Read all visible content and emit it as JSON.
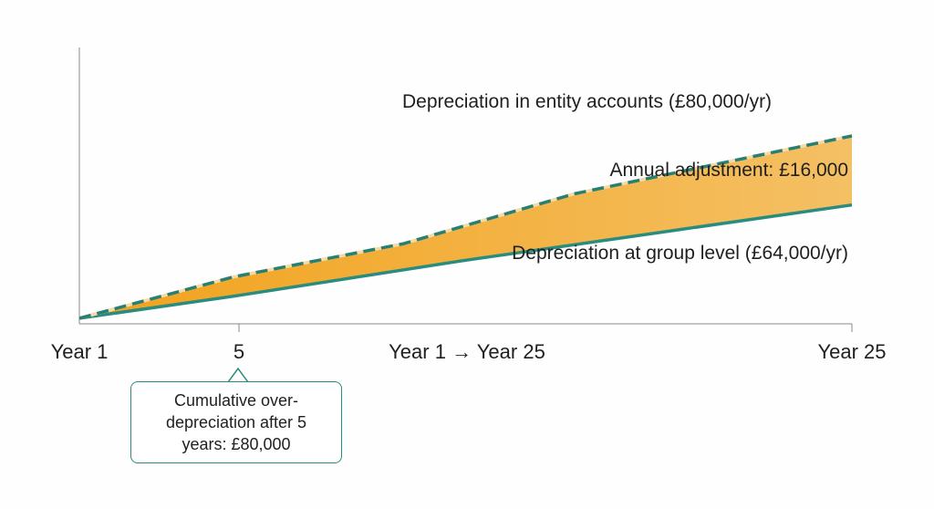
{
  "colors": {
    "entity_line": "#2a7f73",
    "group_line": "#2a8c7e",
    "fill_start": "#f2a21b",
    "fill_end": "#f4c064",
    "axis": "#8a8a8a",
    "text": "#1f1f1f"
  },
  "chart_data": {
    "type": "area",
    "x_ticks": [
      "Year 1",
      "5",
      "Year 1 → Year 25",
      "Year 25"
    ],
    "series": [
      {
        "name": "Depreciation in entity accounts (£80,000/yr)",
        "style": "dashed",
        "points": [
          [
            0,
            0.02
          ],
          [
            0.2,
            0.17
          ],
          [
            0.42,
            0.29
          ],
          [
            0.64,
            0.47
          ],
          [
            1.0,
            0.68
          ]
        ]
      },
      {
        "name": "Depreciation at group level (£64,000/yr)",
        "style": "solid",
        "points": [
          [
            0,
            0.02
          ],
          [
            0.2,
            0.1
          ],
          [
            0.5,
            0.23
          ],
          [
            1.0,
            0.43
          ]
        ]
      }
    ],
    "annotations": {
      "gap_label": "Annual adjustment: £16,000",
      "callout": "Cumulative over-depreciation after 5 years: £80,000"
    },
    "grid": false
  }
}
